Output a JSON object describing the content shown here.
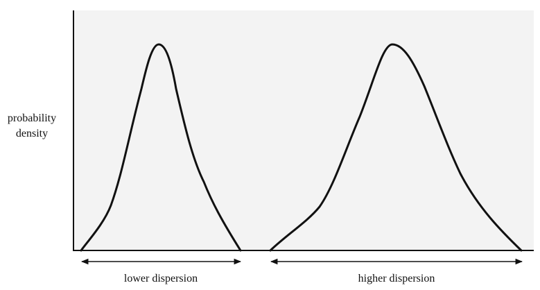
{
  "y_axis_label": [
    "probability",
    "density"
  ],
  "colors": {
    "plot_background": "#f3f3f3",
    "curve": "#111111",
    "axis": "#111111"
  },
  "distributions": [
    {
      "label": "lower dispersion",
      "spread": "lower",
      "relative_peak_height": 1.0
    },
    {
      "label": "higher dispersion",
      "spread": "higher",
      "relative_peak_height": 1.0
    }
  ]
}
